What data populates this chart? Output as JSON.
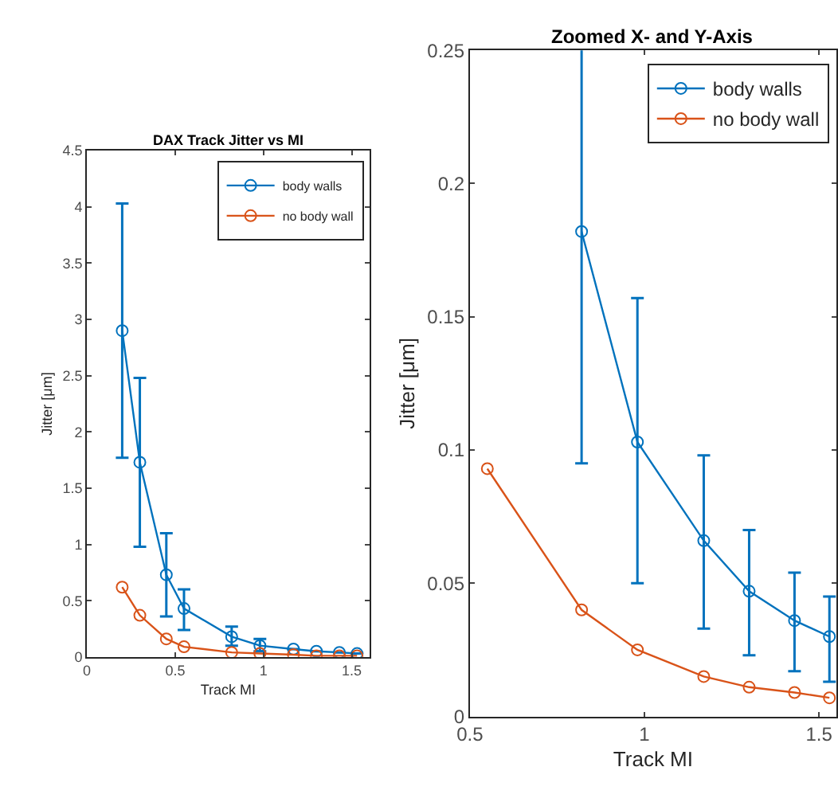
{
  "chart_data": [
    {
      "type": "line",
      "title": "DAX Track Jitter vs MI",
      "xlabel": "Track MI",
      "ylabel": "Jitter [μm]",
      "x": [
        0.2,
        0.3,
        0.45,
        0.55,
        0.82,
        0.98,
        1.17,
        1.3,
        1.43,
        1.53
      ],
      "xlim": [
        0,
        1.6
      ],
      "xticks": [
        0,
        0.5,
        1,
        1.5
      ],
      "ylim": [
        0,
        4.5
      ],
      "yticks": [
        0,
        0.5,
        1,
        1.5,
        2,
        2.5,
        3,
        3.5,
        4,
        4.5
      ],
      "marker": "circle",
      "grid": false,
      "legend": "top right",
      "series": [
        {
          "name": "body walls",
          "color": "#0072bd",
          "values": [
            2.9,
            1.73,
            0.73,
            0.43,
            0.18,
            0.1,
            0.07,
            0.05,
            0.04,
            0.03
          ],
          "errors": [
            [
              1.77,
              4.03
            ],
            [
              0.98,
              2.48
            ],
            [
              0.36,
              1.1
            ],
            [
              0.24,
              0.6
            ],
            [
              0.1,
              0.27
            ],
            [
              0.05,
              0.16
            ],
            null,
            null,
            null,
            null
          ]
        },
        {
          "name": "no body wall",
          "color": "#d95319",
          "values": [
            0.62,
            0.37,
            0.16,
            0.09,
            0.04,
            0.03,
            0.02,
            0.01,
            0.01,
            0.01
          ]
        }
      ]
    },
    {
      "type": "line",
      "title": "Zoomed X- and Y-Axis",
      "xlabel": "Track MI",
      "ylabel": "Jitter [μm]",
      "x": [
        0.55,
        0.82,
        0.98,
        1.17,
        1.3,
        1.43,
        1.53
      ],
      "xlim": [
        0.5,
        1.55
      ],
      "xticks": [
        0.5,
        1,
        1.5
      ],
      "ylim": [
        0,
        0.25
      ],
      "yticks": [
        0,
        0.05,
        0.1,
        0.15,
        0.2,
        0.25
      ],
      "marker": "circle",
      "grid": false,
      "legend": "top right",
      "series": [
        {
          "name": "body walls",
          "color": "#0072bd",
          "values": [
            null,
            0.182,
            0.103,
            0.066,
            0.047,
            0.036,
            0.03
          ],
          "errors": [
            null,
            [
              0.095,
              0.27
            ],
            [
              0.05,
              0.157
            ],
            [
              0.033,
              0.098
            ],
            [
              0.023,
              0.07
            ],
            [
              0.017,
              0.054
            ],
            [
              0.013,
              0.045
            ]
          ]
        },
        {
          "name": "no body wall",
          "color": "#d95319",
          "values": [
            0.093,
            0.04,
            0.025,
            0.015,
            0.011,
            0.009,
            0.007
          ]
        }
      ]
    }
  ]
}
